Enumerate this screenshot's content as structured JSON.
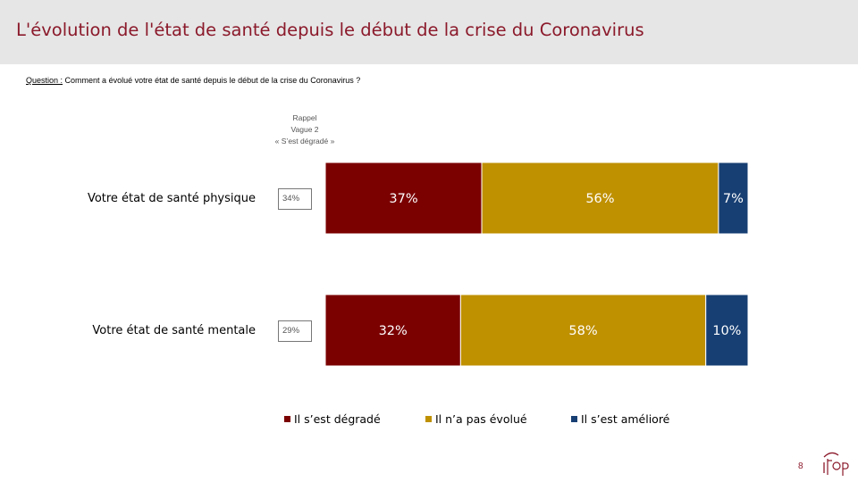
{
  "header": {
    "title": "L'évolution de l'état de santé depuis le début de la crise du Coronavirus"
  },
  "question": {
    "label": "Question :",
    "text": "Comment a évolué votre état de santé depuis le début de la crise du Coronavirus ?"
  },
  "rappel": {
    "line1": "Rappel",
    "line2": "Vague 2",
    "line3": "« S’est dégradé »"
  },
  "chart_data": {
    "type": "bar",
    "stacked": true,
    "orientation": "horizontal",
    "unit": "%",
    "categories": [
      "Votre état de santé physique",
      "Votre état de santé mentale"
    ],
    "series": [
      {
        "name": "Il s’est dégradé",
        "values": [
          37,
          32
        ],
        "labels": [
          "37%",
          "32%"
        ],
        "color": "#7b0000"
      },
      {
        "name": "Il n’a pas évolué",
        "values": [
          56,
          58
        ],
        "labels": [
          "56%",
          "58%"
        ],
        "color": "#bf9000"
      },
      {
        "name": "Il s’est amélioré",
        "values": [
          7,
          10
        ],
        "labels": [
          "7%",
          "10%"
        ],
        "color": "#173f73"
      }
    ],
    "rappel_values": [
      34,
      29
    ],
    "rappel_labels": [
      "34%",
      "29%"
    ],
    "legend_position": "bottom"
  },
  "footer": {
    "page_number": "8"
  }
}
